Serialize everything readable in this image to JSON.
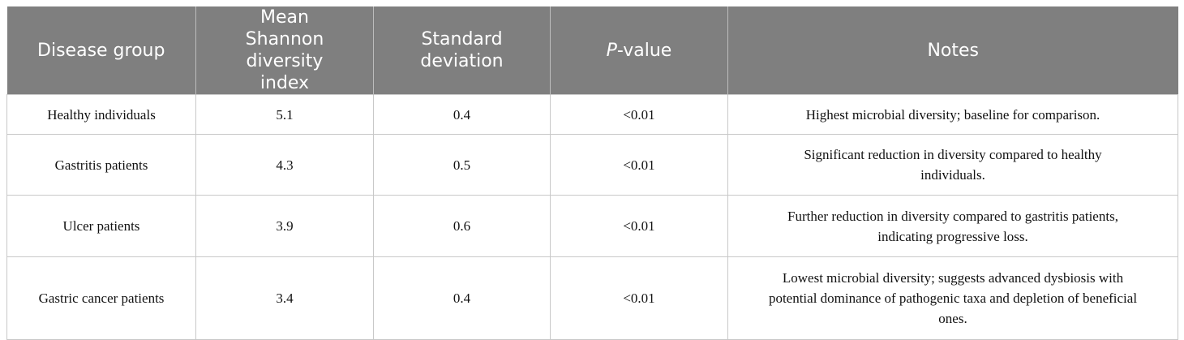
{
  "table": {
    "header": [
      "Disease group",
      "Mean Shannon diversity index",
      "Standard deviation",
      "P-value",
      "Notes"
    ],
    "rows": [
      [
        "Healthy individuals",
        5.1,
        0.4,
        "<0.01",
        "Highest microbial diversity; baseline for comparison."
      ],
      [
        "Gastritis patients",
        4.3,
        0.5,
        "<0.01",
        "Significant reduction in diversity compared to healthy individuals."
      ],
      [
        "Ulcer patients",
        3.9,
        0.6,
        "<0.01",
        "Further reduction in diversity compared to gastritis patients, indicating progressive loss."
      ],
      [
        "Gastric cancer patients",
        3.4,
        0.4,
        "<0.01",
        "Lowest microbial diversity; suggests advanced dysbiosis with potential dominance of pathogenic taxa and depletion of beneficial ones."
      ]
    ]
  }
}
